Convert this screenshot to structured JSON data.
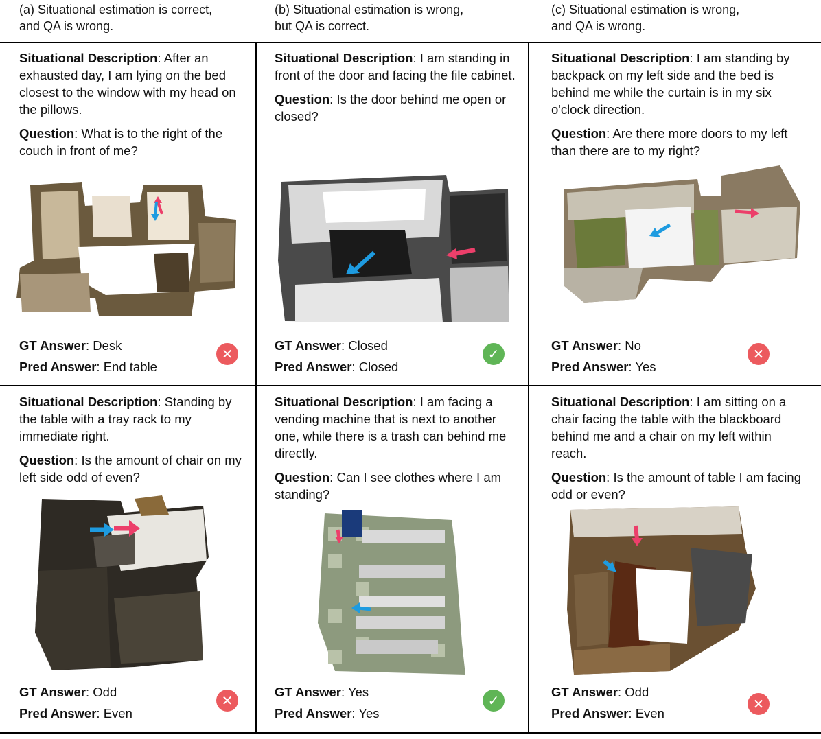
{
  "column_headers": [
    {
      "line1": "(a) Situational estimation is correct,",
      "line2": "and QA is wrong."
    },
    {
      "line1": "(b) Situational estimation is wrong,",
      "line2": "but QA is correct."
    },
    {
      "line1": "(c) Situational estimation is wrong,",
      "line2": "and QA is wrong."
    }
  ],
  "labels": {
    "situational_description": "Situational Description",
    "question": "Question",
    "gt_answer": "GT Answer",
    "pred_answer": "Pred Answer"
  },
  "cells": [
    {
      "description": "After an exhausted day, I am lying on the bed closest to the window with my head on the pillows.",
      "question": "What is to the right of the couch in front of me?",
      "gt": "Desk",
      "pred": "End table",
      "result": "wrong",
      "result_icon": "x-icon"
    },
    {
      "description": "I am standing in front of the door and facing the file cabinet.",
      "question": "Is the door behind me open or closed?",
      "gt": "Closed",
      "pred": "Closed",
      "result": "correct",
      "result_icon": "check-icon"
    },
    {
      "description": "I am standing by backpack on my left side and the bed is behind me while the curtain is in my six o'clock direction.",
      "question": "Are there more doors to my left than there are to my right?",
      "gt": "No",
      "pred": "Yes",
      "result": "wrong",
      "result_icon": "x-icon"
    },
    {
      "description": "Standing by the table with a tray rack to my immediate right.",
      "question": "Is the amount of chair on my left side odd of even?",
      "gt": "Odd",
      "pred": "Even",
      "result": "wrong",
      "result_icon": "x-icon"
    },
    {
      "description": "I am facing a vending machine that is next to another one, while there is a trash can behind me directly.",
      "question": "Can I see clothes where I am standing?",
      "gt": "Yes",
      "pred": "Yes",
      "result": "correct",
      "result_icon": "check-icon"
    },
    {
      "description": "I am sitting on a chair facing the table with the blackboard behind me and a chair on my left within reach.",
      "question": "Is the amount of table I am facing odd or even?",
      "gt": "Odd",
      "pred": "Even",
      "result": "wrong",
      "result_icon": "x-icon"
    }
  ],
  "colors": {
    "wrong": "#ec5a5e",
    "correct": "#5fb556",
    "arrow_blue": "#1e9be0",
    "arrow_red": "#ec3f6a"
  }
}
